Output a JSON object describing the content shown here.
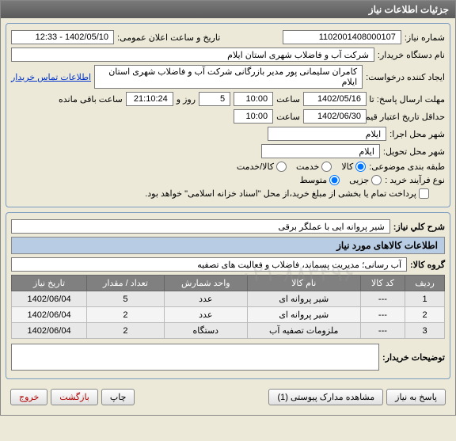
{
  "window": {
    "title": "جزئیات اطلاعات نیاز"
  },
  "fields": {
    "need_no_lbl": "شماره نیاز:",
    "need_no": "1102001408000107",
    "announce_lbl": "تاریخ و ساعت اعلان عمومی:",
    "announce": "1402/05/10 - 12:33",
    "buyer_lbl": "نام دستگاه خریدار:",
    "buyer": "شرکت آب و فاضلاب شهری استان ایلام",
    "requester_lbl": "ایجاد کننده درخواست:",
    "requester": "کامران سلیمانی پور مدیر بازرگانی شرکت آب و فاضلاب شهری استان ایلام",
    "contact_link": "اطلاعات تماس خریدار",
    "deadline_lbl": "مهلت ارسال پاسخ: تا تاریخ:",
    "deadline_date": "1402/05/16",
    "time_lbl": "ساعت",
    "deadline_time": "10:00",
    "days_lbl": "روز و",
    "days": "5",
    "remain_time": "21:10:24",
    "remain_lbl": "ساعت باقی مانده",
    "validity_lbl": "حداقل تاریخ اعتبار قیمت: تا تاریخ:",
    "validity_date": "1402/06/30",
    "validity_time": "10:00",
    "exec_city_lbl": "شهر محل اجرا:",
    "exec_city": "ایلام",
    "deliv_city_lbl": "شهر محل تحویل:",
    "deliv_city": "ایلام",
    "class_lbl": "طبقه بندی موضوعی:",
    "class_goods": "کالا",
    "class_service": "خدمت",
    "class_both": "کالا/خدمت",
    "buy_type_lbl": "نوع فرآیند خرید :",
    "buy_small": "جزیی",
    "buy_medium": "متوسط",
    "pay_note": "پرداخت تمام یا بخشی از مبلغ خرید،از محل \"اسناد خزانه اسلامی\" خواهد بود."
  },
  "desc": {
    "title_lbl": "شرح کلي نياز:",
    "title": "شیر پروانه ایی با عملگر برقی",
    "section": "اطلاعات کالاهای مورد نیاز",
    "group_lbl": "گروه کالا:",
    "group": "آب رسانی؛ مدیریت پسماند، فاضلاب و فعالیت های تصفیه"
  },
  "table": {
    "cols": [
      "ردیف",
      "کد کالا",
      "نام کالا",
      "واحد شمارش",
      "تعداد / مقدار",
      "تاریخ نیاز"
    ],
    "rows": [
      [
        "1",
        "---",
        "شیر پروانه ای",
        "عدد",
        "5",
        "1402/06/04"
      ],
      [
        "2",
        "---",
        "شیر پروانه ای",
        "عدد",
        "2",
        "1402/06/04"
      ],
      [
        "3",
        "---",
        "ملزومات تصفیه آب",
        "دستگاه",
        "2",
        "1402/06/04"
      ]
    ]
  },
  "notes": {
    "lbl": "توضیحات خریدار:",
    "val": ""
  },
  "buttons": {
    "respond": "پاسخ به نیاز",
    "attach": "مشاهده مدارک پیوستی (1)",
    "print": "چاپ",
    "back": "بازگشت",
    "exit": "خروج"
  }
}
